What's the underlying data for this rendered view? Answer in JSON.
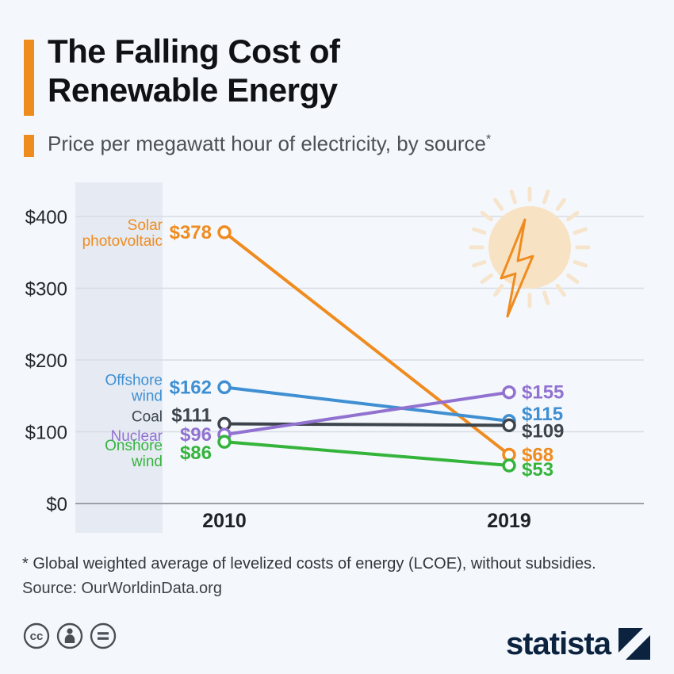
{
  "header": {
    "title_line1": "The Falling Cost of",
    "title_line2": "Renewable Energy",
    "subtitle": "Price per megawatt hour of electricity, by source",
    "footnote_marker": "*"
  },
  "chart_data": {
    "type": "line",
    "variant": "slope",
    "title": "Price per megawatt hour of electricity, by source",
    "x": [
      "2010",
      "2019"
    ],
    "ylim": [
      0,
      400
    ],
    "yticks": [
      0,
      100,
      200,
      300,
      400
    ],
    "ytick_labels": [
      "$0",
      "$100",
      "$200",
      "$300",
      "$400"
    ],
    "grid": true,
    "legend_position": "inline-left",
    "series": [
      {
        "name": "Solar photovoltaic",
        "color": "#f08b1f",
        "values": [
          378,
          68
        ],
        "point_labels": [
          "$378",
          "$68"
        ]
      },
      {
        "name": "Offshore wind",
        "color": "#3f8fd2",
        "values": [
          162,
          115
        ],
        "point_labels": [
          "$162",
          "$115"
        ]
      },
      {
        "name": "Coal",
        "color": "#3d444b",
        "values": [
          111,
          109
        ],
        "point_labels": [
          "$111",
          "$109"
        ]
      },
      {
        "name": "Nuclear",
        "color": "#9172d0",
        "values": [
          96,
          155
        ],
        "point_labels": [
          "$96",
          "$155"
        ]
      },
      {
        "name": "Onshore wind",
        "color": "#35b43c",
        "values": [
          86,
          53
        ],
        "point_labels": [
          "$86",
          "$53"
        ]
      }
    ]
  },
  "footer": {
    "footnote": "* Global weighted average of levelized costs of energy (LCOE), without subsidies.",
    "source": "Source: OurWorldinData.org"
  },
  "branding": {
    "logo_text": "statista",
    "cc_glyph": "cc"
  },
  "colors": {
    "accent": "#ef8c1f",
    "background": "#f4f8fc",
    "highlight_band": "#e6ebf3",
    "grid_line": "#d7dce3",
    "axis_line": "#9aa1a9"
  }
}
